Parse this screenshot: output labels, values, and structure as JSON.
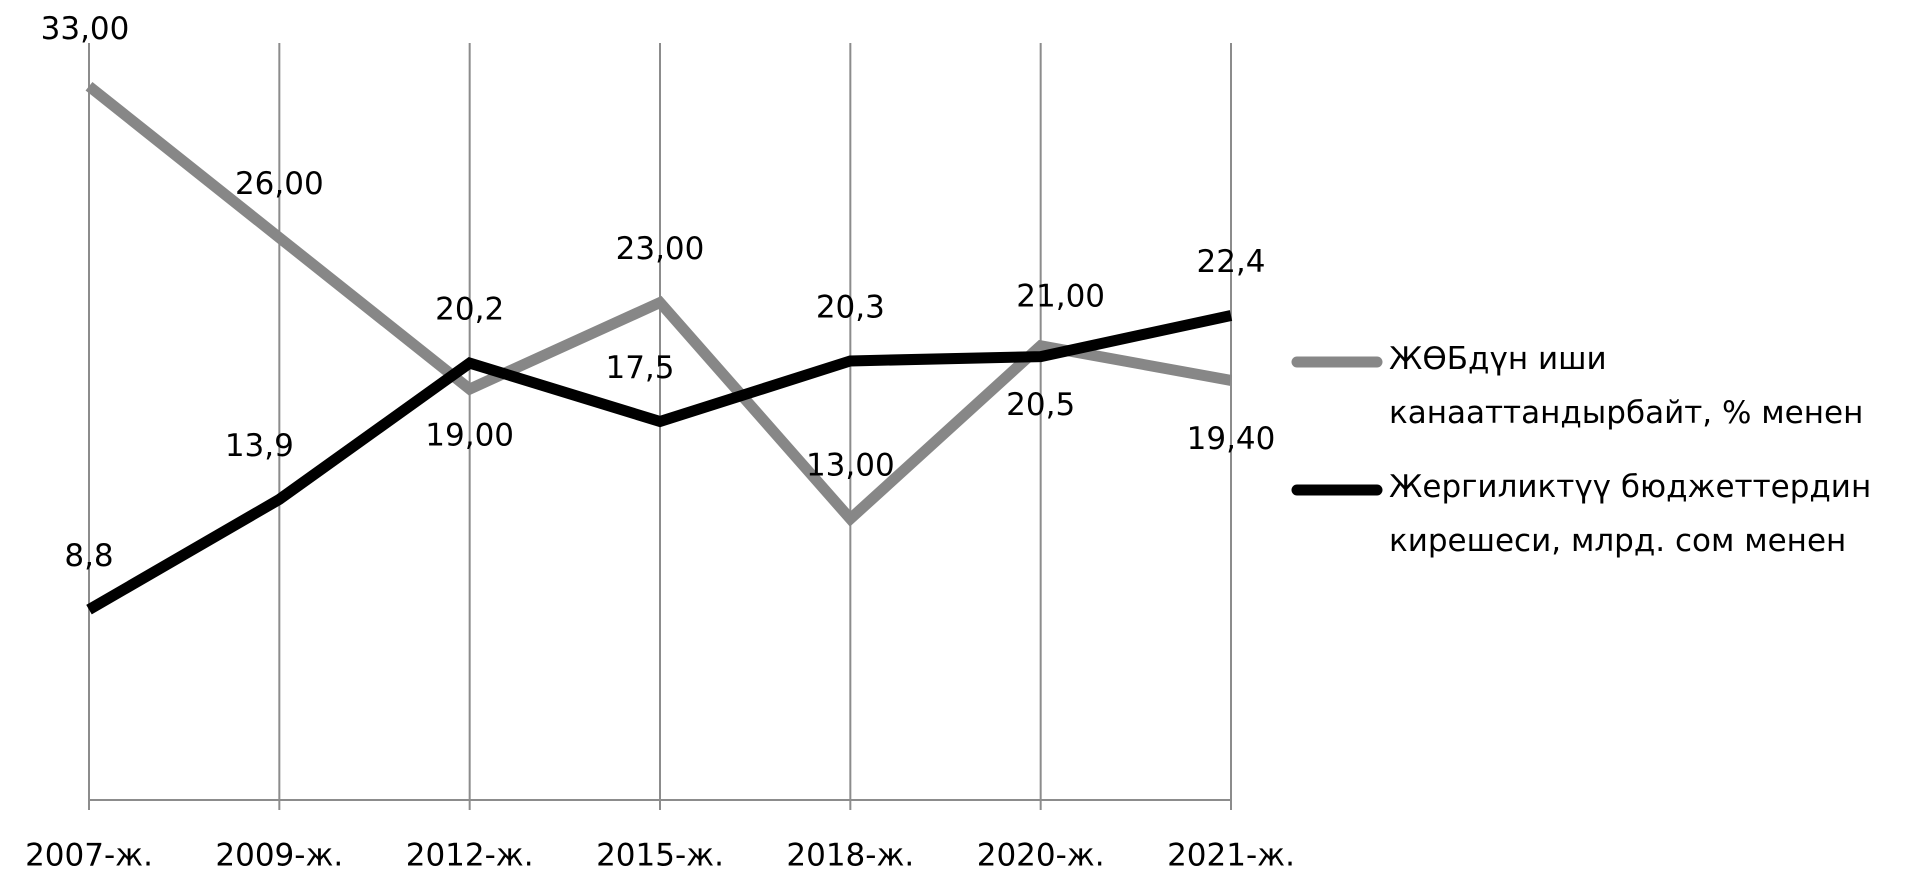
{
  "chart_data": {
    "type": "line",
    "categories": [
      "2007-ж.",
      "2009-ж.",
      "2012-ж.",
      "2015-ж.",
      "2018-ж.",
      "2020-ж.",
      "2021-ж."
    ],
    "series": [
      {
        "name": "ЖӨБдүн иши канааттандырбайт, % менен",
        "color": "#878787",
        "values": [
          33,
          26,
          19,
          23,
          13,
          21,
          19.4
        ],
        "value_labels": [
          "33,00",
          "26,00",
          "19,00",
          "23,00",
          "13,00",
          "21,00",
          "19,40"
        ]
      },
      {
        "name": "Жергиликтүү бюджеттердин кирешеси, млрд. сом менен",
        "color": "#000000",
        "values": [
          8.8,
          13.9,
          20.2,
          17.5,
          20.3,
          20.5,
          22.4
        ],
        "value_labels": [
          "8,8",
          "13,9",
          "20,2",
          "17,5",
          "20,3",
          "20,5",
          "22,4"
        ]
      }
    ],
    "ylim": [
      0,
      35
    ],
    "grid": true,
    "legend": "right"
  }
}
